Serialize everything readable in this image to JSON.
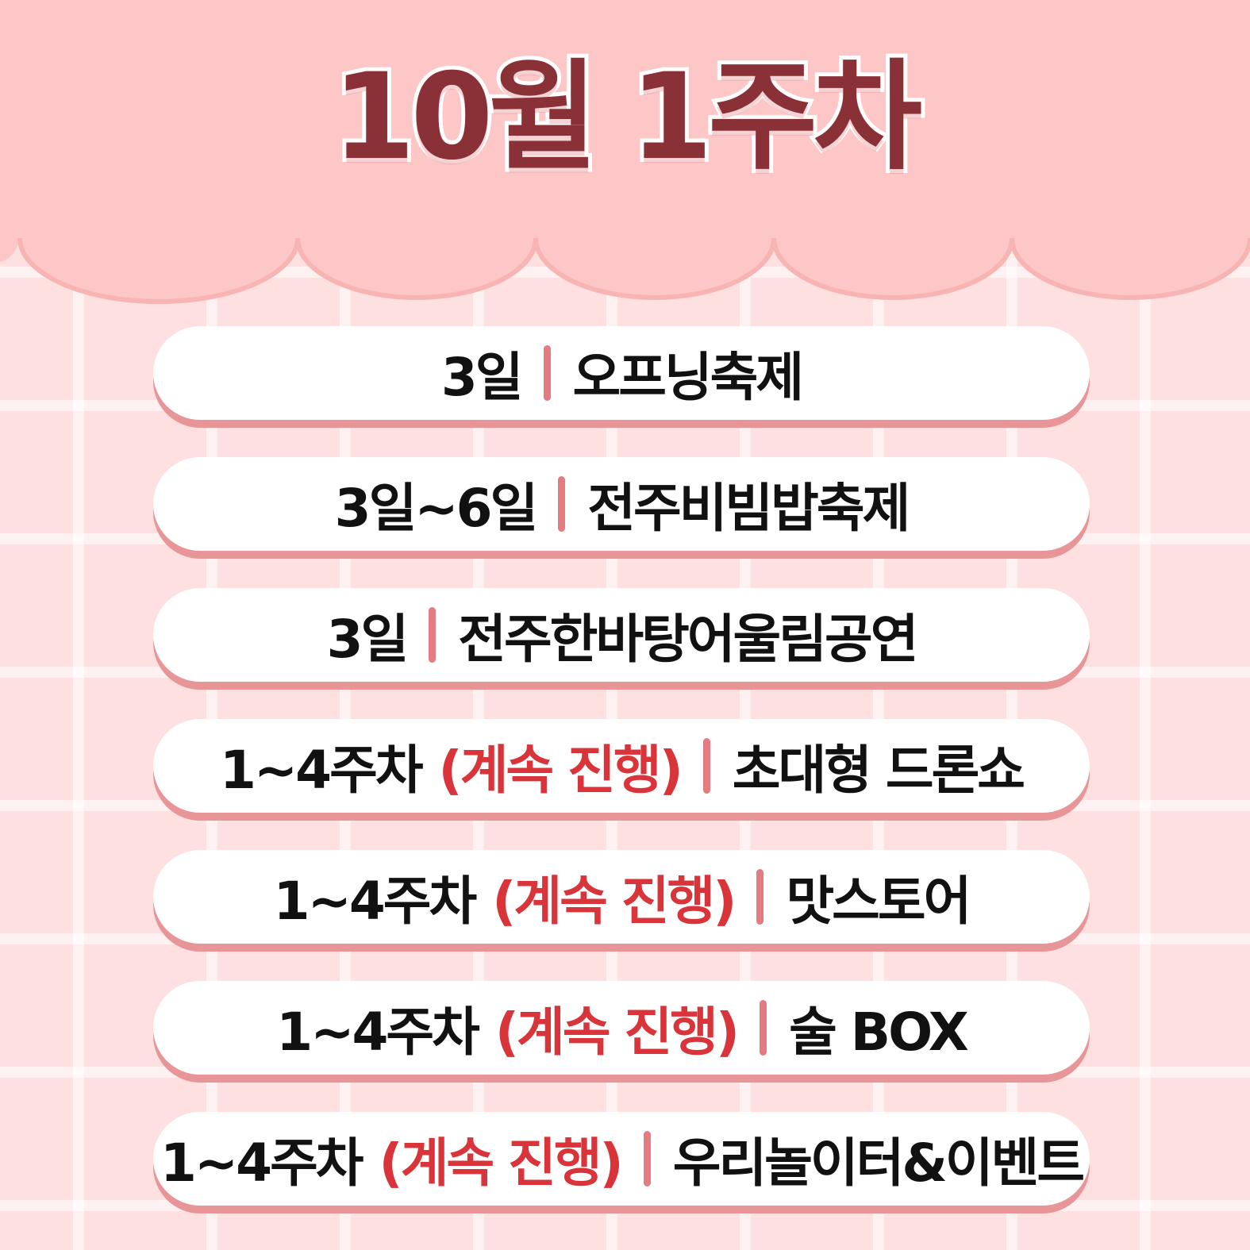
{
  "title": "10월 1주차",
  "colors": {
    "background": "#fde0df",
    "header": "#fcc7c6",
    "title": "#8a3138",
    "highlight": "#d8343a",
    "separator": "#e37b80",
    "pill_shadow": "#e89597"
  },
  "schedule": [
    {
      "date": "3일",
      "note": "",
      "event": "오프닝축제"
    },
    {
      "date": "3일~6일",
      "note": "",
      "event": "전주비빔밥축제"
    },
    {
      "date": "3일",
      "note": "",
      "event": "전주한바탕어울림공연"
    },
    {
      "date": "1~4주차",
      "note": "(계속 진행)",
      "event": "초대형 드론쇼"
    },
    {
      "date": "1~4주차",
      "note": "(계속 진행)",
      "event": "맛스토어"
    },
    {
      "date": "1~4주차",
      "note": "(계속 진행)",
      "event": "술 BOX"
    },
    {
      "date": "1~4주차",
      "note": "(계속 진행)",
      "event": "우리놀이터&이벤트"
    }
  ]
}
